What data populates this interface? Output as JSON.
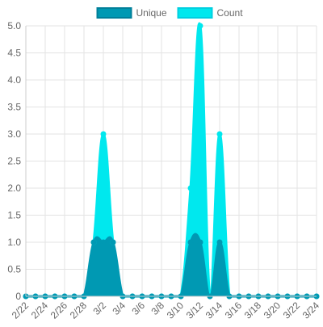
{
  "chart_data": {
    "type": "area",
    "x": [
      "2/22",
      "2/23",
      "2/24",
      "2/25",
      "2/26",
      "2/27",
      "2/28",
      "3/1",
      "3/2",
      "3/3",
      "3/4",
      "3/5",
      "3/6",
      "3/7",
      "3/8",
      "3/9",
      "3/10",
      "3/11",
      "3/12",
      "3/13",
      "3/14",
      "3/15",
      "3/16",
      "3/17",
      "3/18",
      "3/19",
      "3/20",
      "3/21",
      "3/22",
      "3/23",
      "3/24"
    ],
    "x_tick_labels": [
      "2/22",
      "2/24",
      "2/26",
      "2/28",
      "3/2",
      "3/4",
      "3/6",
      "3/8",
      "3/10",
      "3/12",
      "3/14",
      "3/16",
      "3/18",
      "3/20",
      "3/22",
      "3/24"
    ],
    "y_tick_labels": [
      "0",
      "0.5",
      "1.0",
      "1.5",
      "2.0",
      "2.5",
      "3.0",
      "3.5",
      "4.0",
      "4.5",
      "5.0"
    ],
    "ylim": [
      0,
      5
    ],
    "grid": true,
    "legend_position": "top-center",
    "series": [
      {
        "name": "Unique",
        "color": "#0099b3",
        "values": [
          0,
          0,
          0,
          0,
          0,
          0,
          0,
          1,
          1,
          1,
          0,
          0,
          0,
          0,
          0,
          0,
          0,
          1,
          1,
          0,
          1,
          0,
          0,
          0,
          0,
          0,
          0,
          0,
          0,
          0,
          0
        ]
      },
      {
        "name": "Count",
        "color": "#00e8ee",
        "values": [
          0,
          0,
          0,
          0,
          0,
          0,
          0,
          1,
          3,
          1,
          0,
          0,
          0,
          0,
          0,
          0,
          0,
          2,
          5,
          0,
          3,
          0,
          0,
          0,
          0,
          0,
          0,
          0,
          0,
          0,
          0
        ]
      }
    ]
  }
}
